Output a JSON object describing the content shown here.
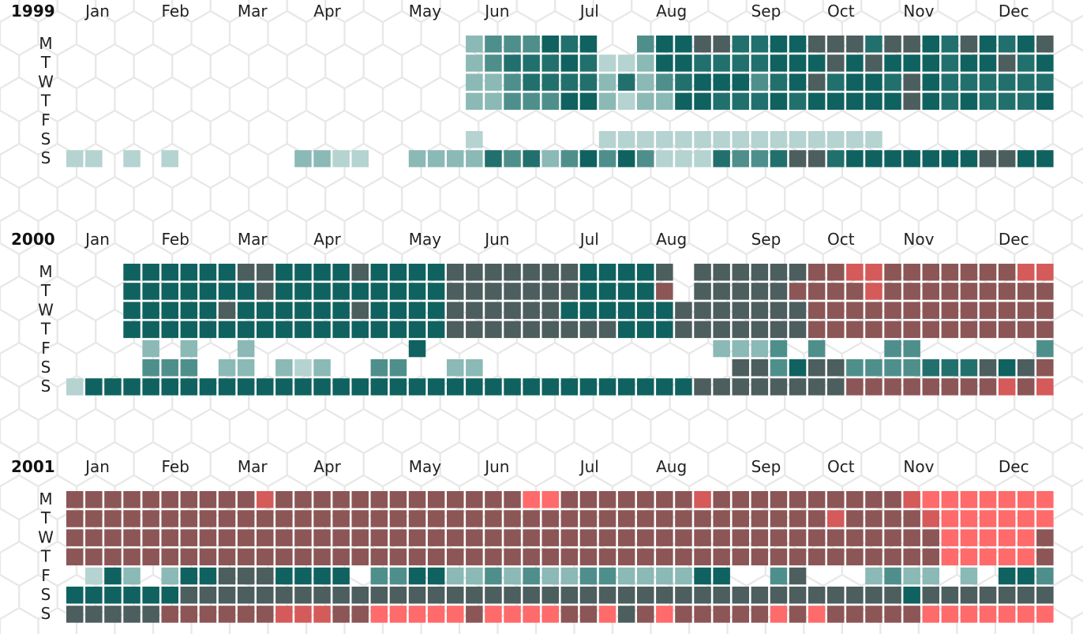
{
  "chart_data": {
    "type": "heatmap",
    "title": "",
    "day_labels": [
      "M",
      "T",
      "W",
      "T",
      "F",
      "S",
      "S"
    ],
    "value_scale": {
      "description": "intensity levels 1 (lightest teal) to 8 (red)",
      "colors": [
        "#d5e6e4",
        "#b5d3d0",
        "#8ab9b6",
        "#4e8f8c",
        "#21706d",
        "#0f625f",
        "#4c5e5d",
        "#8c5656",
        "#d55a5a",
        "#ff6a6a"
      ]
    },
    "hex_background_color": "#e8e8e8",
    "years": [
      {
        "year": "1999",
        "months": [
          "Jan",
          "Feb",
          "Mar",
          "Apr",
          "May",
          "Jun",
          "Jul",
          "Aug",
          "Sep",
          "Oct",
          "Nov",
          "Dec"
        ],
        "weekly_intensity": [
          "0000000000000000000002333545003556644556664665465456532555555555",
          "0000000000000000000002344454112554444555656555455645542255655555",
          "0000000000000000000002234444242345553456455465444444433564555555",
          "0000000000000000000002233355212255444545555565454445433255555555",
          "0000000000000000000000000000000000000000000000000000000000000000",
          "0000000000000000000001000000111111111111111000000000001112110000",
          "1101010000002211002222434235353111433466455555556655565556560056"
        ]
      },
      {
        "year": "2000",
        "months": [
          "Jan",
          "Feb",
          "Mar",
          "Apr",
          "May",
          "Jun",
          "Jul",
          "Aug",
          "Sep",
          "Oct",
          "Nov",
          "Dec"
        ],
        "weekly_intensity": [
          "0005555556655556555566666665555606666667788777777788887788777899",
          "0005555555655555555566666665555706666677778777777777777787777887",
          "0005555565555556555566666655555566666667777777777777777777777777",
          "0005555555555555555566666666655566666667777777777777778777788777",
          "0000202002000000005000000000000000222303000330000003343555335233",
          "0000333022021200330022000000000000066356633334446567773377775376",
          "1555555555555555555555555555555556666666677777777878888888889865"
        ]
      },
      {
        "year": "2001",
        "months": [
          "Jan",
          "Feb",
          "Mar",
          "Apr",
          "May",
          "Jun",
          "Jul",
          "Aug",
          "Sep",
          "Oct",
          "Nov",
          "Dec"
        ],
        "weekly_intensity": [
          "7777777777877777777777779977777778777777777789999999999977770000",
          "7777777777777777777777777777777777777777877778999999779998777777",
          "7777777777777777777777777777777777777777777777999997777999777777",
          "7777777777777777777777777777777777777777777777999997778999977777",
          "0152025566655550335522323223322225500360002322020553225546233222",
          "5555556666666666666666666666666666666666666656666666666666666666",
          "6666677777788877999997999977967977777979777779999999999977777777"
        ]
      }
    ]
  }
}
